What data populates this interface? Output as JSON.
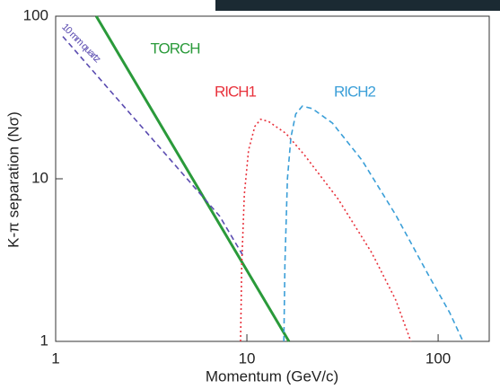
{
  "chart_data": {
    "type": "line",
    "xlabel": "Momentum (GeV/c)",
    "ylabel": "K-π separation (Nσ)",
    "xscale": "log",
    "yscale": "log",
    "xlim": [
      1,
      185
    ],
    "ylim": [
      1,
      100
    ],
    "xticks": [
      1,
      10,
      100
    ],
    "yticks": [
      1,
      10,
      100
    ],
    "series": [
      {
        "name": "TORCH",
        "color": "#2a9a3a",
        "style": "solid",
        "x": [
          1.63,
          16.6
        ],
        "values": [
          100,
          1
        ]
      },
      {
        "name": "10 mm quartz",
        "color": "#5a4bb0",
        "style": "dashed",
        "x": [
          1.09,
          7.2,
          9.5
        ],
        "values": [
          75,
          5.9,
          3.4
        ]
      },
      {
        "name": "RICH1",
        "color": "#e8323c",
        "style": "dotted",
        "x": [
          9.27,
          9.4,
          9.7,
          10.2,
          11,
          11.8,
          13,
          16,
          20,
          30,
          45,
          60,
          72
        ],
        "values": [
          1,
          3,
          8,
          15,
          21,
          23.2,
          22.5,
          19,
          14,
          7.5,
          3.5,
          1.8,
          1
        ]
      },
      {
        "name": "RICH2",
        "color": "#3b9fd8",
        "style": "dashed",
        "x": [
          15.6,
          15.8,
          16.3,
          17,
          18,
          19.5,
          22,
          28,
          40,
          60,
          90,
          115,
          135
        ],
        "values": [
          1,
          3,
          10,
          18,
          25,
          28,
          27,
          22,
          13,
          6,
          2.5,
          1.5,
          1
        ]
      }
    ]
  }
}
